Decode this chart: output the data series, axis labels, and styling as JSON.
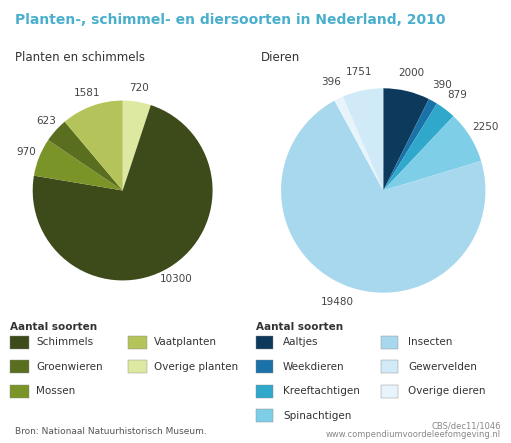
{
  "title": "Planten-, schimmel- en diersoorten in Nederland, 2010",
  "title_color": "#4aafcc",
  "subtitle_left": "Planten en schimmels",
  "subtitle_right": "Dieren",
  "pie1_values": [
    10300,
    970,
    623,
    1581,
    720
  ],
  "pie1_colors": [
    "#3d4a1a",
    "#5a6e20",
    "#7a9428",
    "#b5c45a",
    "#dde8a0"
  ],
  "pie1_labels_text": [
    "10300",
    "970",
    "623",
    "1581",
    "720"
  ],
  "pie2_values": [
    2000,
    390,
    879,
    2250,
    19480,
    396,
    1751
  ],
  "pie2_colors": [
    "#0d3a5c",
    "#1a72a8",
    "#2fa8cc",
    "#7ecee8",
    "#a8d8ee",
    "#d0eaf8",
    "#e8f4fc"
  ],
  "pie2_labels_text": [
    "2000",
    "390",
    "879",
    "2250",
    "19480",
    "396",
    "1751"
  ],
  "legend1_title": "Aantal soorten",
  "legend1_items": [
    [
      "#3d4a1a",
      "Schimmels"
    ],
    [
      "#5a6e20",
      "Groenwieren"
    ],
    [
      "#7a9428",
      "Mossen"
    ],
    [
      "#b5c45a",
      "Vaatplanten"
    ],
    [
      "#dde8a0",
      "Overige planten"
    ]
  ],
  "legend2_title": "Aantal soorten",
  "legend2_items": [
    [
      "#0d3a5c",
      "Aaltjes"
    ],
    [
      "#1a72a8",
      "Weekdieren"
    ],
    [
      "#2fa8cc",
      "Kreeftachtigen"
    ],
    [
      "#7ecee8",
      "Spinachtigen"
    ],
    [
      "#a8d8ee",
      "Insecten"
    ],
    [
      "#d0eaf8",
      "Gewervelden"
    ],
    [
      "#e8f4fc",
      "Overige dieren"
    ]
  ],
  "source_left": "Bron: Nationaal Natuurhistorisch Museum.",
  "source_right_line1": "CBS/dec11/1046",
  "source_right_line2": "www.compendiumvoordeleefomgeving.nl",
  "background_color": "#ffffff"
}
